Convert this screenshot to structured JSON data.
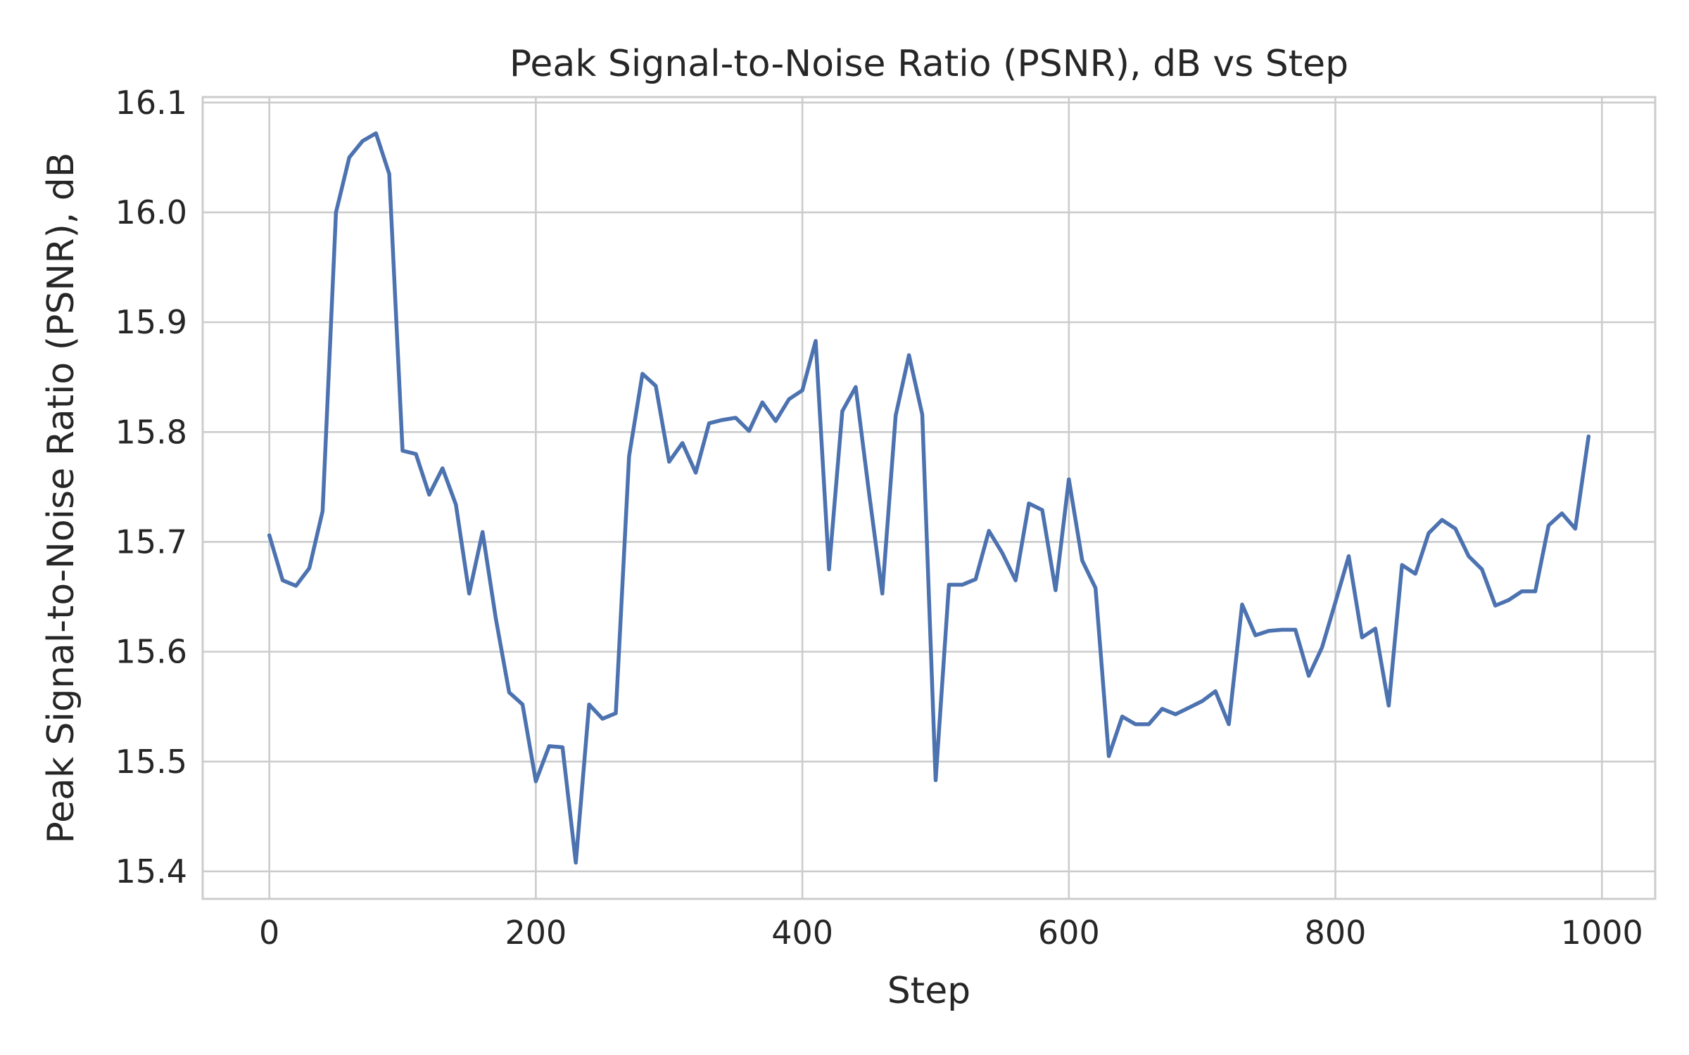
{
  "chart_data": {
    "type": "line",
    "title": "Peak Signal-to-Noise Ratio (PSNR), dB vs Step",
    "xlabel": "Step",
    "ylabel": "Peak Signal-to-Noise Ratio (PSNR), dB",
    "xlim": [
      -50,
      1040
    ],
    "ylim": [
      15.375,
      16.105
    ],
    "xticks": [
      0,
      200,
      400,
      600,
      800,
      1000
    ],
    "xtick_labels": [
      "0",
      "200",
      "400",
      "600",
      "800",
      "1000"
    ],
    "yticks": [
      15.4,
      15.5,
      15.6,
      15.7,
      15.8,
      15.9,
      16.0,
      16.1
    ],
    "ytick_labels": [
      "15.4",
      "15.5",
      "15.6",
      "15.7",
      "15.8",
      "15.9",
      "16.0",
      "16.1"
    ],
    "grid": true,
    "line_color": "#4c72b0",
    "series": [
      {
        "x": [
          0,
          10,
          20,
          30,
          40,
          50,
          60,
          70,
          80,
          90,
          100,
          110,
          120,
          130,
          140,
          150,
          160,
          170,
          180,
          190,
          200,
          210,
          220,
          230,
          240,
          250,
          260,
          270,
          280,
          290,
          300,
          310,
          320,
          330,
          340,
          350,
          360,
          370,
          380,
          390,
          400,
          410,
          420,
          430,
          440,
          450,
          460,
          470,
          480,
          490,
          500,
          510,
          520,
          530,
          540,
          550,
          560,
          570,
          580,
          590,
          600,
          610,
          620,
          630,
          640,
          650,
          660,
          670,
          680,
          690,
          700,
          710,
          720,
          730,
          740,
          750,
          760,
          770,
          780,
          790,
          800,
          810,
          820,
          830,
          840,
          850,
          860,
          870,
          880,
          890,
          900,
          910,
          920,
          930,
          940,
          950,
          960,
          970,
          980,
          990
        ],
        "y": [
          15.706,
          15.665,
          15.66,
          15.676,
          15.728,
          16.0,
          16.05,
          16.065,
          16.072,
          16.035,
          15.783,
          15.78,
          15.743,
          15.767,
          15.734,
          15.653,
          15.709,
          15.63,
          15.563,
          15.552,
          15.482,
          15.514,
          15.513,
          15.408,
          15.552,
          15.539,
          15.544,
          15.778,
          15.853,
          15.842,
          15.773,
          15.79,
          15.763,
          15.808,
          15.811,
          15.813,
          15.801,
          15.827,
          15.81,
          15.83,
          15.838,
          15.883,
          15.675,
          15.819,
          15.841,
          15.745,
          15.653,
          15.815,
          15.87,
          15.816,
          15.483,
          15.661,
          15.661,
          15.666,
          15.71,
          15.69,
          15.665,
          15.735,
          15.729,
          15.656,
          15.757,
          15.683,
          15.658,
          15.505,
          15.541,
          15.534,
          15.534,
          15.548,
          15.543,
          15.549,
          15.555,
          15.564,
          15.534,
          15.643,
          15.615,
          15.619,
          15.62,
          15.62,
          15.578,
          15.604,
          15.645,
          15.687,
          15.613,
          15.621,
          15.551,
          15.679,
          15.671,
          15.708,
          15.72,
          15.712,
          15.687,
          15.675,
          15.642,
          15.647,
          15.655,
          15.655,
          15.715,
          15.726,
          15.712,
          15.796
        ]
      }
    ]
  }
}
